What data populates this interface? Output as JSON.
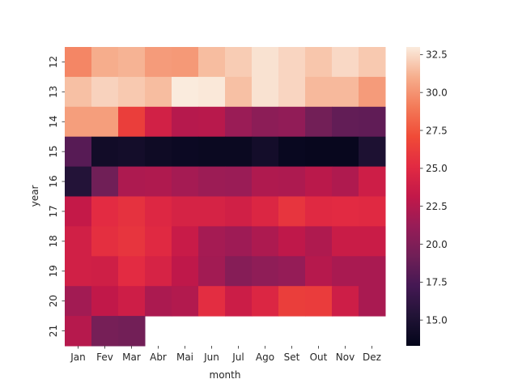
{
  "chart_data": {
    "type": "heatmap",
    "title": "",
    "xlabel": "month",
    "ylabel": "year",
    "x_categories": [
      "Jan",
      "Fev",
      "Mar",
      "Abr",
      "Mai",
      "Jun",
      "Jul",
      "Ago",
      "Set",
      "Out",
      "Nov",
      "Dez"
    ],
    "y_categories": [
      "12",
      "13",
      "14",
      "15",
      "16",
      "17",
      "18",
      "19",
      "20",
      "21"
    ],
    "values": [
      [
        29.5,
        31.0,
        31.2,
        30.3,
        30.2,
        31.5,
        32.0,
        32.7,
        32.3,
        31.8,
        32.4,
        31.9
      ],
      [
        31.6,
        32.2,
        31.9,
        31.5,
        33.0,
        32.9,
        31.6,
        32.7,
        32.3,
        31.4,
        31.4,
        30.3
      ],
      [
        30.4,
        30.4,
        26.3,
        24.1,
        22.6,
        22.7,
        21.3,
        20.6,
        20.9,
        19.3,
        18.6,
        18.5
      ],
      [
        18.1,
        14.3,
        14.4,
        14.1,
        13.9,
        13.8,
        13.8,
        14.4,
        13.7,
        13.6,
        13.6,
        15.0
      ],
      [
        15.4,
        19.2,
        22.2,
        22.3,
        21.8,
        21.4,
        21.3,
        22.3,
        22.2,
        22.8,
        22.3,
        23.8
      ],
      [
        23.3,
        25.2,
        25.6,
        24.8,
        24.3,
        24.3,
        24.0,
        24.7,
        25.8,
        25.0,
        25.1,
        25.0
      ],
      [
        24.0,
        25.4,
        25.8,
        25.0,
        23.5,
        21.8,
        21.5,
        22.2,
        23.0,
        22.3,
        23.6,
        23.6
      ],
      [
        24.0,
        23.9,
        25.2,
        24.4,
        23.0,
        21.7,
        20.3,
        20.8,
        21.1,
        22.6,
        22.0,
        22.0
      ],
      [
        21.7,
        23.1,
        23.8,
        22.1,
        22.4,
        25.3,
        23.7,
        24.7,
        26.3,
        26.2,
        23.8,
        22.0
      ],
      [
        22.6,
        19.5,
        19.3,
        null,
        null,
        null,
        null,
        null,
        null,
        null,
        null,
        null
      ]
    ],
    "vmin": 13.3,
    "vmax": 33.0,
    "colormap": "rocket",
    "colorbar_ticks": [
      "15.0",
      "17.5",
      "20.0",
      "22.5",
      "25.0",
      "27.5",
      "30.0",
      "32.5"
    ],
    "colorbar_tick_values": [
      15.0,
      17.5,
      20.0,
      22.5,
      25.0,
      27.5,
      30.0,
      32.5
    ],
    "grid": false,
    "legend": "colorbar-right"
  }
}
